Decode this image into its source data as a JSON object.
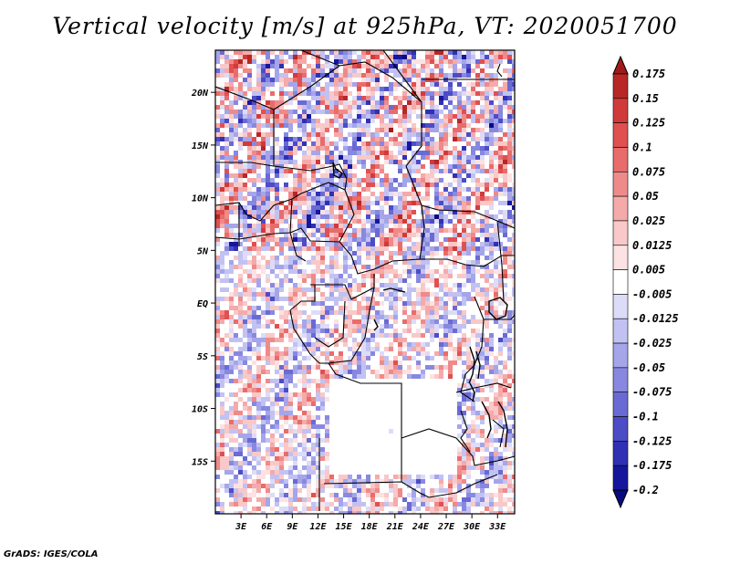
{
  "title": "Vertical velocity [m/s] at 925hPa, VT: 2020051700",
  "credit": "GrADS: IGES/COLA",
  "map": {
    "variable": "Vertical velocity",
    "units": "m/s",
    "level": "925hPa",
    "valid_time": "2020051700",
    "lon_range": [
      0,
      35
    ],
    "lat_range": [
      -20,
      24
    ],
    "x_ticks": [
      {
        "lon": 3,
        "label": "3E"
      },
      {
        "lon": 6,
        "label": "6E"
      },
      {
        "lon": 9,
        "label": "9E"
      },
      {
        "lon": 12,
        "label": "12E"
      },
      {
        "lon": 15,
        "label": "15E"
      },
      {
        "lon": 18,
        "label": "18E"
      },
      {
        "lon": 21,
        "label": "21E"
      },
      {
        "lon": 24,
        "label": "24E"
      },
      {
        "lon": 27,
        "label": "27E"
      },
      {
        "lon": 30,
        "label": "30E"
      },
      {
        "lon": 33,
        "label": "33E"
      }
    ],
    "y_ticks": [
      {
        "lat": 20,
        "label": "20N"
      },
      {
        "lat": 15,
        "label": "15N"
      },
      {
        "lat": 10,
        "label": "10N"
      },
      {
        "lat": 5,
        "label": "5N"
      },
      {
        "lat": 0,
        "label": "EQ"
      },
      {
        "lat": -5,
        "label": "5S"
      },
      {
        "lat": -10,
        "label": "10S"
      },
      {
        "lat": -15,
        "label": "15S"
      }
    ]
  },
  "colorbar": {
    "labels": [
      "0.175",
      "0.15",
      "0.125",
      "0.1",
      "0.075",
      "0.05",
      "0.025",
      "0.0125",
      "0.005",
      "-0.005",
      "-0.0125",
      "-0.025",
      "-0.05",
      "-0.075",
      "-0.1",
      "-0.125",
      "-0.175",
      "-0.2"
    ],
    "colors": [
      "#a01a1a",
      "#b82626",
      "#d13a3a",
      "#e05050",
      "#e86c6c",
      "#ef8a8a",
      "#f5aaaa",
      "#f9c8c8",
      "#fce2e2",
      "#ffffff",
      "#dcdcf8",
      "#c2c2f2",
      "#a5a5ea",
      "#8888e0",
      "#6a6ad4",
      "#4c4cc6",
      "#3030b4",
      "#16169c",
      "#0a0a80"
    ]
  }
}
